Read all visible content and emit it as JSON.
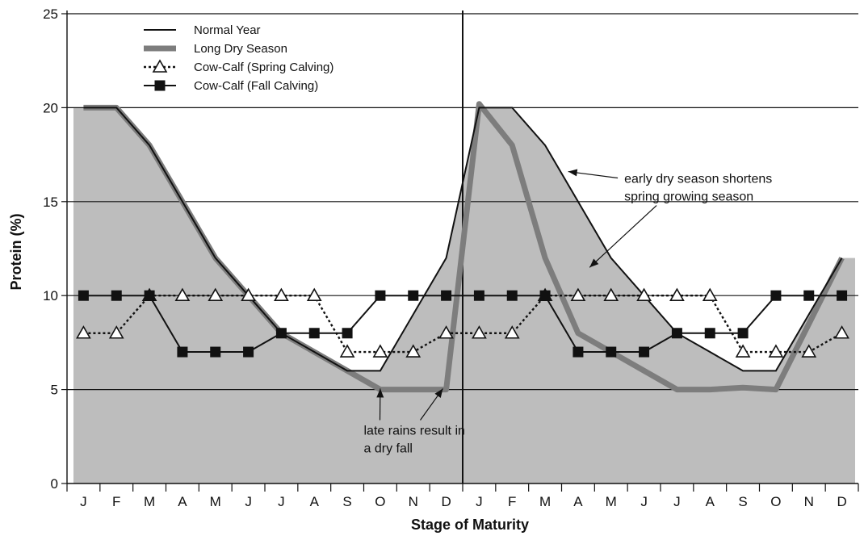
{
  "chart_data": {
    "type": "line",
    "xlabel": "Stage of Maturity",
    "ylabel": "Protein (%)",
    "ylim": [
      0,
      25
    ],
    "yticks": [
      0,
      5,
      10,
      15,
      20,
      25
    ],
    "grid": "horizontal",
    "legend_position": "top-left",
    "categories": [
      "J",
      "F",
      "M",
      "A",
      "M",
      "J",
      "J",
      "A",
      "S",
      "O",
      "N",
      "D",
      "J",
      "F",
      "M",
      "A",
      "M",
      "J",
      "J",
      "A",
      "S",
      "O",
      "N",
      "D"
    ],
    "divider_between_index": [
      11,
      12
    ],
    "series": [
      {
        "name": "Normal Year",
        "style": "thin-line",
        "color": "#111111",
        "values": [
          20,
          20,
          18,
          15,
          12,
          10,
          8,
          7,
          6,
          6,
          9,
          12,
          20,
          20,
          18,
          15,
          12,
          10,
          8,
          7,
          6,
          6,
          9,
          12
        ],
        "shaded_area_color": "#bdbdbd"
      },
      {
        "name": "Long Dry Season",
        "style": "thick-gray-line",
        "color": "#7d7d7d",
        "points": [
          [
            1,
            20
          ],
          [
            2,
            20
          ],
          [
            3,
            18
          ],
          [
            4,
            15
          ],
          [
            5,
            12
          ],
          [
            6,
            10
          ],
          [
            7,
            8
          ],
          [
            8,
            7
          ],
          [
            9,
            6
          ],
          [
            10,
            5
          ],
          [
            11,
            5
          ],
          [
            12,
            5
          ],
          [
            13,
            20.2
          ],
          [
            14,
            18
          ],
          [
            15,
            12
          ],
          [
            16,
            8
          ],
          [
            17,
            7
          ],
          [
            18,
            6
          ],
          [
            19,
            5
          ],
          [
            20,
            5
          ],
          [
            21,
            5.1
          ],
          [
            22,
            5
          ],
          [
            23,
            8.5
          ],
          [
            24,
            12
          ]
        ]
      },
      {
        "name": "Cow-Calf (Spring Calving)",
        "style": "dotted-line-open-triangle",
        "color": "#111111",
        "values": [
          8,
          8,
          10,
          10,
          10,
          10,
          10,
          10,
          7,
          7,
          7,
          8,
          8,
          8,
          10,
          10,
          10,
          10,
          10,
          10,
          7,
          7,
          7,
          8
        ]
      },
      {
        "name": "Cow-Calf (Fall Calving)",
        "style": "solid-line-filled-square",
        "color": "#111111",
        "values": [
          10,
          10,
          10,
          7,
          7,
          7,
          8,
          8,
          8,
          10,
          10,
          10,
          10,
          10,
          10,
          7,
          7,
          7,
          8,
          8,
          8,
          10,
          10,
          10
        ]
      }
    ],
    "annotations": [
      {
        "text_lines": [
          "early dry season shortens",
          "spring growing season"
        ],
        "arrow_targets": [
          [
            15.7,
            16.6
          ],
          [
            16.35,
            11.5
          ]
        ],
        "text_anchor": [
          17.4,
          16.0
        ]
      },
      {
        "text_lines": [
          "late rains result in",
          "a dry fall"
        ],
        "arrow_targets": [
          [
            10,
            5.05
          ],
          [
            11.9,
            5.05
          ]
        ],
        "text_anchor": [
          9.5,
          2.6
        ]
      }
    ]
  }
}
